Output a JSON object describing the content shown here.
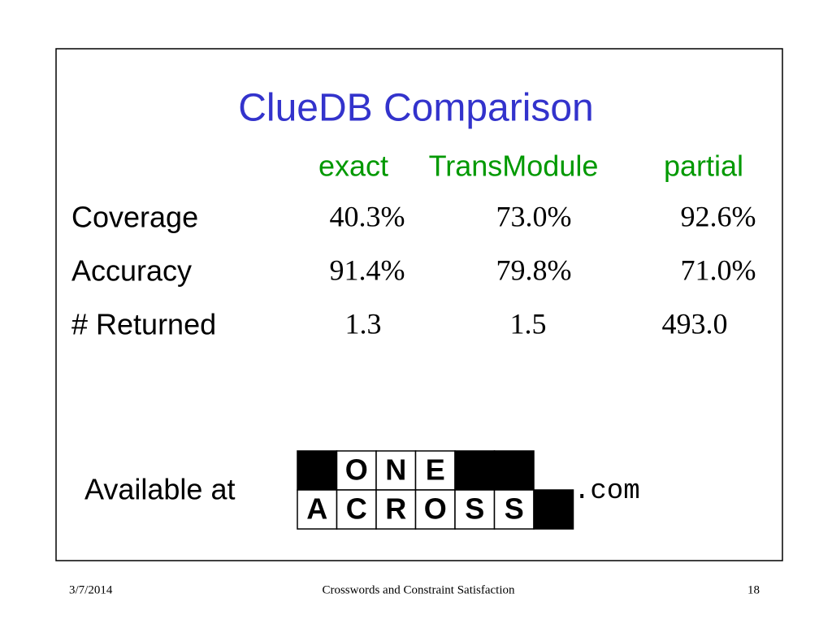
{
  "slide": {
    "title": "ClueDB Comparison",
    "table": {
      "columns": [
        "exact",
        "TransModule",
        "partial"
      ],
      "rows": [
        {
          "label": "Coverage",
          "cells": [
            "40.3%",
            "73.0%",
            "92.6%"
          ]
        },
        {
          "label": "Accuracy",
          "cells": [
            "91.4%",
            "79.8%",
            "71.0%"
          ]
        },
        {
          "label": "# Returned",
          "cells": [
            "1.3",
            "1.5",
            "493.0"
          ]
        }
      ]
    },
    "availability": {
      "text": "Available at",
      "logo": [
        [
          null,
          "O",
          "N",
          "E",
          null,
          null
        ],
        [
          "A",
          "C",
          "R",
          "O",
          "S",
          "S",
          null
        ]
      ],
      "suffix": ".com"
    }
  },
  "footer": {
    "date": "3/7/2014",
    "title": "Crosswords and Constraint Satisfaction",
    "page": "18"
  }
}
